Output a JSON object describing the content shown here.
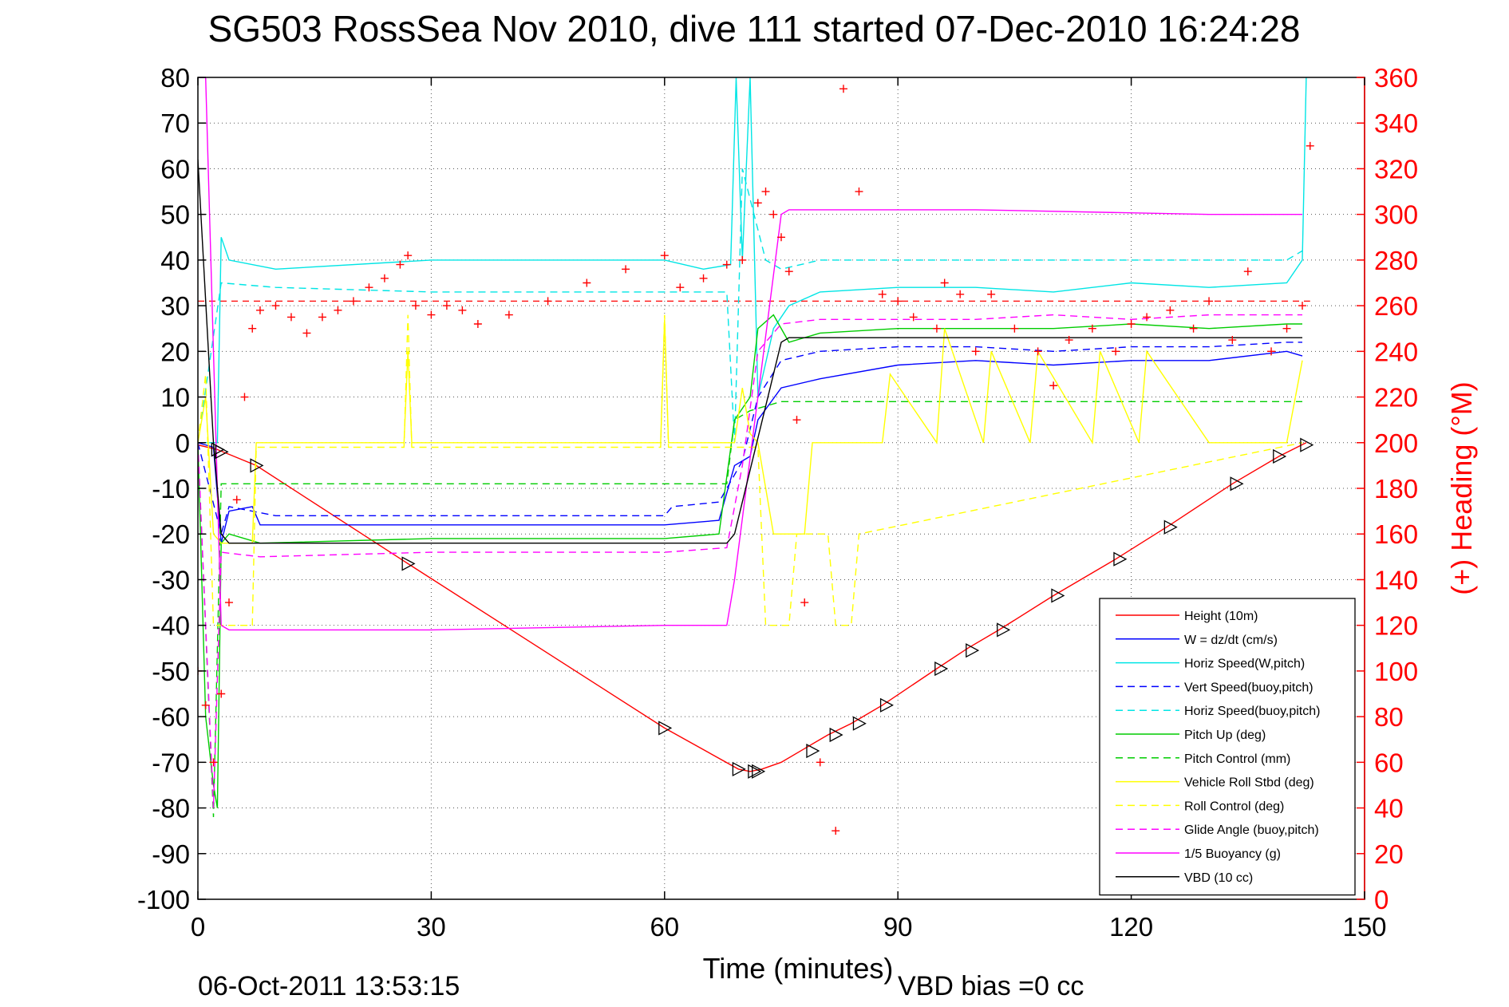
{
  "chart_data": {
    "type": "line",
    "title": "SG503 RossSea Nov 2010, dive 111 started 07-Dec-2010 16:24:28",
    "xlabel": "Time (minutes)",
    "ylabel": "",
    "y2label": "(+) Heading (°M)",
    "xlim": [
      0,
      150
    ],
    "ylim": [
      -100,
      80
    ],
    "y2lim": [
      0,
      360
    ],
    "xticks": [
      0,
      30,
      60,
      90,
      120,
      150
    ],
    "yticks": [
      80,
      70,
      60,
      50,
      40,
      30,
      20,
      10,
      0,
      -10,
      -20,
      -30,
      -40,
      -50,
      -60,
      -70,
      -80,
      -90,
      -100
    ],
    "y2ticks": [
      360,
      340,
      320,
      300,
      280,
      260,
      240,
      220,
      200,
      180,
      160,
      140,
      120,
      100,
      80,
      60,
      40,
      20,
      0
    ],
    "grid": true,
    "legend_position": "bottom-right",
    "footer_left": "06-Oct-2011 13:53:15",
    "footer_right": "VBD bias =0 cc",
    "series": [
      {
        "name": "Height (10m)",
        "color": "#ff0000",
        "dash": "solid",
        "x": [
          0,
          2.5,
          7.5,
          27,
          60,
          69.5,
          71,
          72.5,
          75,
          78,
          81,
          84,
          88,
          95,
          99,
          103,
          110,
          118,
          125,
          133,
          139,
          142.5
        ],
        "y": [
          -0.5,
          -1.5,
          -5,
          -26.5,
          -62.5,
          -71.5,
          -72,
          -71.5,
          -70,
          -67,
          -64,
          -61.5,
          -57.5,
          -49.5,
          -45,
          -41,
          -33.5,
          -25.5,
          -18,
          -9,
          -3,
          0
        ]
      },
      {
        "name": "W = dz/dt (cm/s)",
        "color": "#0000ff",
        "dash": "solid",
        "x": [
          0,
          2,
          3,
          4,
          7,
          8,
          30,
          60,
          67,
          69,
          71,
          72,
          75,
          80,
          90,
          100,
          110,
          120,
          130,
          140,
          142
        ],
        "y": [
          0,
          -1,
          -22,
          -15,
          -14,
          -18,
          -18,
          -18,
          -17,
          -5,
          -3,
          5,
          12,
          14,
          17,
          18,
          17,
          18,
          18,
          20,
          19
        ]
      },
      {
        "name": "Horiz Speed(W,pitch)",
        "color": "#00e5e5",
        "dash": "solid",
        "x": [
          0,
          2.5,
          3,
          4,
          10,
          30,
          60,
          65,
          68.5,
          69.2,
          70,
          71,
          72,
          74,
          76,
          80,
          90,
          100,
          110,
          120,
          130,
          140,
          142,
          142.5
        ],
        "y": [
          0,
          0,
          45,
          40,
          38,
          40,
          40,
          38,
          39,
          80,
          40,
          80,
          10,
          25,
          30,
          33,
          34,
          34,
          33,
          35,
          34,
          35,
          40,
          80
        ]
      },
      {
        "name": "Vert Speed(buoy,pitch)",
        "color": "#0000ff",
        "dash": "dash",
        "x": [
          0,
          3,
          4,
          10,
          30,
          60,
          61,
          67,
          70,
          72,
          75,
          80,
          90,
          100,
          110,
          120,
          130,
          140,
          142
        ],
        "y": [
          0,
          -20,
          -14,
          -16,
          -16,
          -16,
          -14,
          -13,
          -4,
          10,
          18,
          20,
          21,
          21,
          20,
          21,
          21,
          22,
          22
        ]
      },
      {
        "name": "Horiz Speed(buoy,pitch)",
        "color": "#00e5e5",
        "dash": "dash",
        "x": [
          0,
          3,
          10,
          30,
          60,
          68,
          69,
          70,
          73,
          75,
          80,
          90,
          100,
          110,
          120,
          130,
          140,
          142
        ],
        "y": [
          0,
          35,
          34,
          33,
          33,
          33,
          0,
          60,
          40,
          38,
          40,
          40,
          40,
          40,
          40,
          40,
          40,
          42
        ]
      },
      {
        "name": "Pitch Up (deg)",
        "color": "#00cc00",
        "dash": "solid",
        "x": [
          0,
          1,
          2,
          2.5,
          3,
          4,
          8,
          30,
          60,
          67,
          69,
          71,
          72,
          74,
          76,
          80,
          90,
          100,
          110,
          120,
          130,
          140,
          142
        ],
        "y": [
          0,
          -60,
          -75,
          -80,
          -22,
          -20,
          -22,
          -21,
          -21,
          -20,
          5,
          10,
          25,
          28,
          22,
          24,
          25,
          25,
          25,
          26,
          25,
          26,
          26
        ]
      },
      {
        "name": "Pitch Control (mm)",
        "color": "#00cc00",
        "dash": "dash",
        "x": [
          0,
          2,
          3,
          8,
          30,
          60,
          68,
          69,
          71,
          73,
          75,
          142
        ],
        "y": [
          0,
          -82,
          -9,
          -9,
          -9,
          -9,
          -9,
          5,
          7,
          8,
          9,
          9
        ]
      },
      {
        "name": "Vehicle Roll Stbd (deg)",
        "color": "#ffff00",
        "dash": "solid",
        "x": [
          0,
          1,
          2,
          3,
          7,
          7.5,
          26.5,
          27,
          27.5,
          59.5,
          60,
          60.5,
          69,
          70,
          71,
          72,
          74,
          78,
          79,
          82,
          88,
          89,
          95,
          96,
          101,
          102,
          107,
          108,
          115,
          116,
          121,
          122,
          130,
          140,
          142
        ],
        "y": [
          0,
          10,
          -20,
          -22,
          -22,
          0,
          0,
          20,
          0,
          0,
          27,
          0,
          0,
          12,
          2,
          0,
          -20,
          -20,
          0,
          0,
          0,
          15,
          0,
          25,
          0,
          20,
          0,
          20,
          0,
          20,
          0,
          20,
          0,
          0,
          18
        ]
      },
      {
        "name": "Roll Control (deg)",
        "color": "#ffff00",
        "dash": "dash",
        "x": [
          0,
          1,
          2,
          3,
          7,
          7.5,
          26.5,
          27,
          27.5,
          59.5,
          60,
          60.5,
          69,
          72,
          73,
          76,
          77,
          81,
          82,
          84,
          85,
          142
        ],
        "y": [
          0,
          15,
          -40,
          -40,
          -40,
          -1,
          -1,
          28,
          -1,
          -1,
          28,
          -1,
          -1,
          -1,
          -40,
          -40,
          -20,
          -20,
          -40,
          -40,
          -20,
          0
        ]
      },
      {
        "name": "Glide Angle (buoy,pitch)",
        "color": "#ff00ff",
        "dash": "dash",
        "x": [
          0,
          2,
          3,
          8,
          30,
          60,
          68,
          70,
          72,
          75,
          80,
          90,
          100,
          110,
          120,
          130,
          140,
          142
        ],
        "y": [
          0,
          -80,
          -24,
          -25,
          -24,
          -24,
          -23,
          -5,
          20,
          26,
          27,
          27,
          27,
          28,
          27,
          28,
          28,
          28
        ]
      },
      {
        "name": "1/5 Buoyancy (g)",
        "color": "#ff00ff",
        "dash": "solid",
        "x": [
          0,
          1,
          2,
          3,
          4,
          30,
          60,
          68,
          69,
          75,
          76,
          100,
          130,
          142
        ],
        "y": [
          80,
          80,
          20,
          -40,
          -41,
          -41,
          -40,
          -40,
          -30,
          50,
          51,
          51,
          50,
          50
        ]
      },
      {
        "name": "VBD (10 cc)",
        "color": "#000000",
        "dash": "solid",
        "x": [
          0,
          2,
          3,
          4,
          30,
          60,
          68,
          69,
          75,
          76,
          100,
          130,
          142
        ],
        "y": [
          62,
          0,
          -20,
          -22,
          -22,
          -22,
          -22,
          -20,
          22,
          23,
          23,
          23,
          23
        ]
      }
    ],
    "heading": {
      "name": "Heading (+)",
      "color": "#ff0000",
      "axis": "right",
      "x": [
        0,
        1,
        2,
        3,
        4,
        5,
        6,
        7,
        8,
        10,
        12,
        14,
        16,
        18,
        20,
        22,
        24,
        26,
        27,
        28,
        30,
        32,
        34,
        36,
        40,
        45,
        50,
        55,
        60,
        62,
        65,
        68,
        70,
        72,
        73,
        74,
        75,
        76,
        77,
        78,
        80,
        82,
        83,
        85,
        88,
        90,
        92,
        95,
        96,
        98,
        100,
        102,
        105,
        108,
        110,
        112,
        115,
        118,
        120,
        122,
        125,
        128,
        130,
        133,
        135,
        138,
        140,
        142,
        143
      ],
      "y": [
        100,
        85,
        60,
        90,
        130,
        175,
        220,
        250,
        258,
        260,
        255,
        248,
        255,
        258,
        262,
        268,
        272,
        278,
        282,
        260,
        256,
        260,
        258,
        252,
        256,
        262,
        270,
        276,
        282,
        268,
        272,
        278,
        280,
        305,
        310,
        300,
        290,
        275,
        210,
        130,
        60,
        30,
        355,
        310,
        265,
        262,
        255,
        250,
        270,
        265,
        240,
        265,
        250,
        240,
        225,
        245,
        250,
        240,
        252,
        255,
        258,
        250,
        262,
        245,
        275,
        240,
        250,
        260,
        330
      ]
    },
    "markers": {
      "name": "dive markers",
      "color": "#000000",
      "x": [
        2.5,
        3,
        7.5,
        27,
        60,
        69.5,
        71.5,
        72,
        79,
        82,
        85,
        88.5,
        95.5,
        99.5,
        103.5,
        110.5,
        118.5,
        125,
        133.5,
        139,
        142.5
      ],
      "y": [
        -1.5,
        -2,
        -5,
        -26.5,
        -62.5,
        -71.5,
        -72,
        -72,
        -67.5,
        -64,
        -61.5,
        -57.5,
        -49.5,
        -45.5,
        -41,
        -33.5,
        -25.5,
        -18.5,
        -9,
        -3,
        -0.5
      ]
    }
  }
}
